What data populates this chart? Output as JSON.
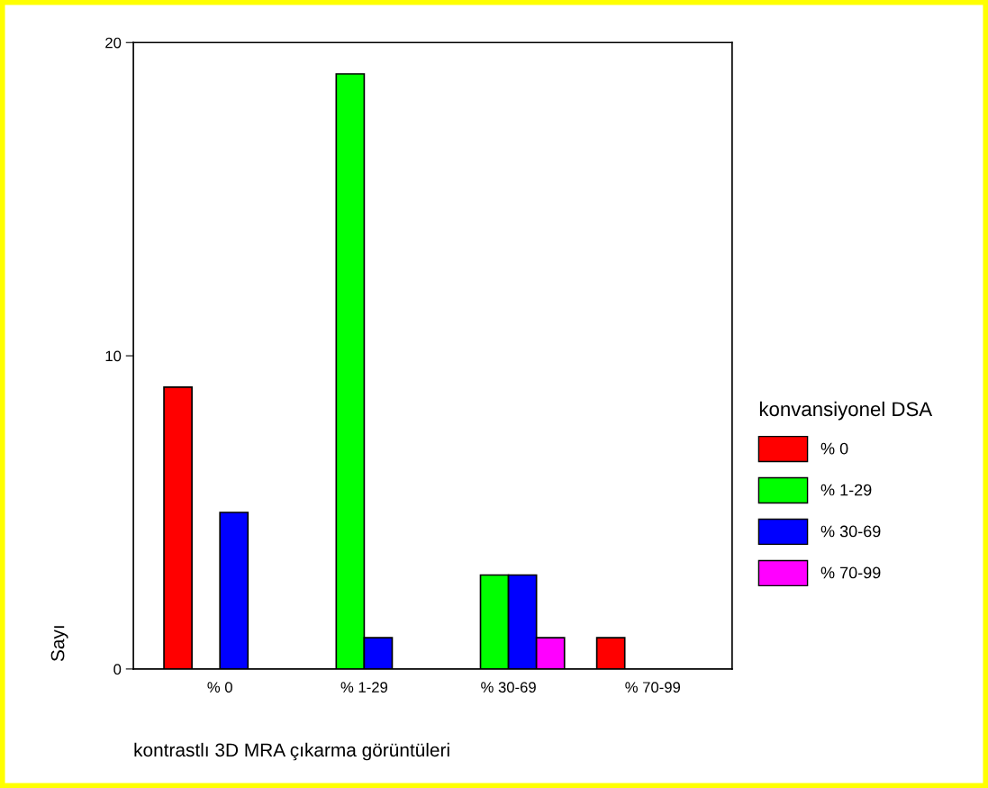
{
  "chart_data": {
    "type": "bar",
    "xlabel": "kontrastlı 3D MRA çıkarma görüntüleri",
    "ylabel": "Sayı",
    "legend_title": "konvansiyonel DSA",
    "categories": [
      "% 0",
      "% 1-29",
      "% 30-69",
      "% 70-99"
    ],
    "series": [
      {
        "name": "% 0",
        "color": "#ff0000",
        "values": [
          9,
          null,
          null,
          1
        ]
      },
      {
        "name": "% 1-29",
        "color": "#00ff00",
        "values": [
          null,
          19,
          3,
          null
        ]
      },
      {
        "name": "% 30-69",
        "color": "#0000ff",
        "values": [
          5,
          1,
          3,
          null
        ]
      },
      {
        "name": "% 70-99",
        "color": "#ff00ff",
        "values": [
          null,
          null,
          1,
          null
        ]
      }
    ],
    "ylim": [
      0,
      20
    ],
    "yticks": [
      0,
      10,
      20
    ],
    "grid": false,
    "legend": "right"
  }
}
